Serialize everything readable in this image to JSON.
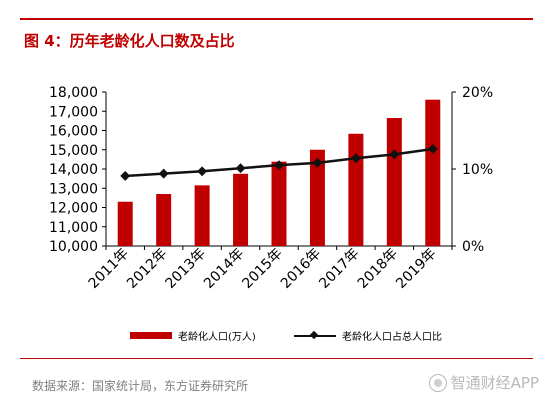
{
  "title": "图 4：历年老龄化人口数及占比",
  "source": "数据来源：国家统计局，东方证券研究所",
  "watermark": "智通财经APP",
  "colors": {
    "accent": "#c00000",
    "bar": "#c00000",
    "line": "#111111",
    "source_text": "#808080"
  },
  "legend": {
    "bar_label": "老龄化人口(万人)",
    "line_label": "老龄化人口占总人口比"
  },
  "chart_data": {
    "type": "bar",
    "categories": [
      "2011年",
      "2012年",
      "2013年",
      "2014年",
      "2015年",
      "2016年",
      "2017年",
      "2018年",
      "2019年"
    ],
    "series": [
      {
        "name": "老龄化人口(万人)",
        "type": "bar",
        "axis": "left",
        "values": [
          12300,
          12700,
          13150,
          13750,
          14380,
          15000,
          15830,
          16650,
          17600
        ]
      },
      {
        "name": "老龄化人口占总人口比",
        "type": "line",
        "axis": "right",
        "values": [
          9.1,
          9.4,
          9.7,
          10.1,
          10.5,
          10.8,
          11.4,
          11.9,
          12.6
        ]
      }
    ],
    "y_left": {
      "min": 10000,
      "max": 18000,
      "step": 1000,
      "tick_labels": [
        "10,000",
        "11,000",
        "12,000",
        "13,000",
        "14,000",
        "15,000",
        "16,000",
        "17,000",
        "18,000"
      ]
    },
    "y_right": {
      "min": 0,
      "max": 20,
      "tick_values": [
        0,
        10,
        20
      ],
      "tick_labels": [
        "0%",
        "10%",
        "20%"
      ]
    },
    "legend_position": "bottom",
    "grid": false
  }
}
